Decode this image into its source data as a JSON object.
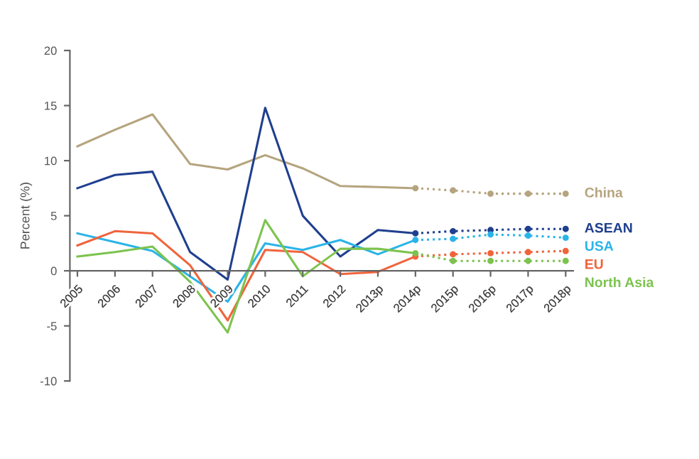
{
  "chart_data": {
    "type": "line",
    "ylabel": "Percent (%)",
    "categories": [
      "2005",
      "2006",
      "2007",
      "2008",
      "2009",
      "2010",
      "2011",
      "2012",
      "2013p",
      "2014p",
      "2015p",
      "2016p",
      "2017p",
      "2018p"
    ],
    "ylim": [
      -10,
      20
    ],
    "yticks": [
      -10,
      -5,
      0,
      5,
      10,
      15,
      20
    ],
    "grid": false,
    "legend": false,
    "series": [
      {
        "color": "#b5a47e",
        "line_style": "solid",
        "values": [
          11.3,
          12.8,
          14.2,
          9.7,
          9.2,
          10.5,
          9.3,
          7.7,
          7.6,
          7.5,
          null,
          null,
          null,
          null
        ]
      },
      {
        "name": "China",
        "color": "#b5a47e",
        "line_style": "dotted",
        "marker": "circle",
        "values": [
          null,
          null,
          null,
          null,
          null,
          null,
          null,
          null,
          null,
          7.5,
          7.3,
          7.0,
          7.0,
          7.0
        ]
      },
      {
        "color": "#1f3f8f",
        "line_style": "solid",
        "values": [
          7.5,
          8.7,
          9.0,
          1.7,
          -0.8,
          14.8,
          5.0,
          1.3,
          3.7,
          3.4,
          null,
          null,
          null,
          null
        ]
      },
      {
        "name": "ASEAN",
        "color": "#1f3f8f",
        "line_style": "dotted",
        "marker": "circle",
        "values": [
          null,
          null,
          null,
          null,
          null,
          null,
          null,
          null,
          null,
          3.4,
          3.6,
          3.7,
          3.8,
          3.8
        ]
      },
      {
        "color": "#2ab4e8",
        "line_style": "solid",
        "values": [
          3.4,
          2.6,
          1.8,
          -0.5,
          -2.8,
          2.5,
          1.9,
          2.8,
          1.5,
          2.8,
          null,
          null,
          null,
          null
        ]
      },
      {
        "name": "USA",
        "color": "#2ab4e8",
        "line_style": "dotted",
        "marker": "circle",
        "values": [
          null,
          null,
          null,
          null,
          null,
          null,
          null,
          null,
          null,
          2.8,
          2.9,
          3.3,
          3.2,
          3.0
        ]
      },
      {
        "color": "#f0643c",
        "line_style": "solid",
        "values": [
          2.3,
          3.6,
          3.4,
          0.5,
          -4.5,
          1.9,
          1.7,
          -0.3,
          -0.1,
          1.3,
          null,
          null,
          null,
          null
        ]
      },
      {
        "name": "EU",
        "color": "#f0643c",
        "line_style": "dotted",
        "marker": "circle",
        "values": [
          null,
          null,
          null,
          null,
          null,
          null,
          null,
          null,
          null,
          1.3,
          1.5,
          1.6,
          1.7,
          1.8
        ]
      },
      {
        "color": "#7cc34e",
        "line_style": "solid",
        "values": [
          1.3,
          1.7,
          2.2,
          -1.0,
          -5.6,
          4.6,
          -0.5,
          2.0,
          2.0,
          1.6,
          null,
          null,
          null,
          null
        ]
      },
      {
        "name": "North Asia",
        "color": "#7cc34e",
        "line_style": "dotted",
        "marker": "circle",
        "values": [
          null,
          null,
          null,
          null,
          null,
          null,
          null,
          null,
          null,
          1.6,
          0.9,
          0.9,
          0.9,
          0.9
        ]
      }
    ]
  }
}
